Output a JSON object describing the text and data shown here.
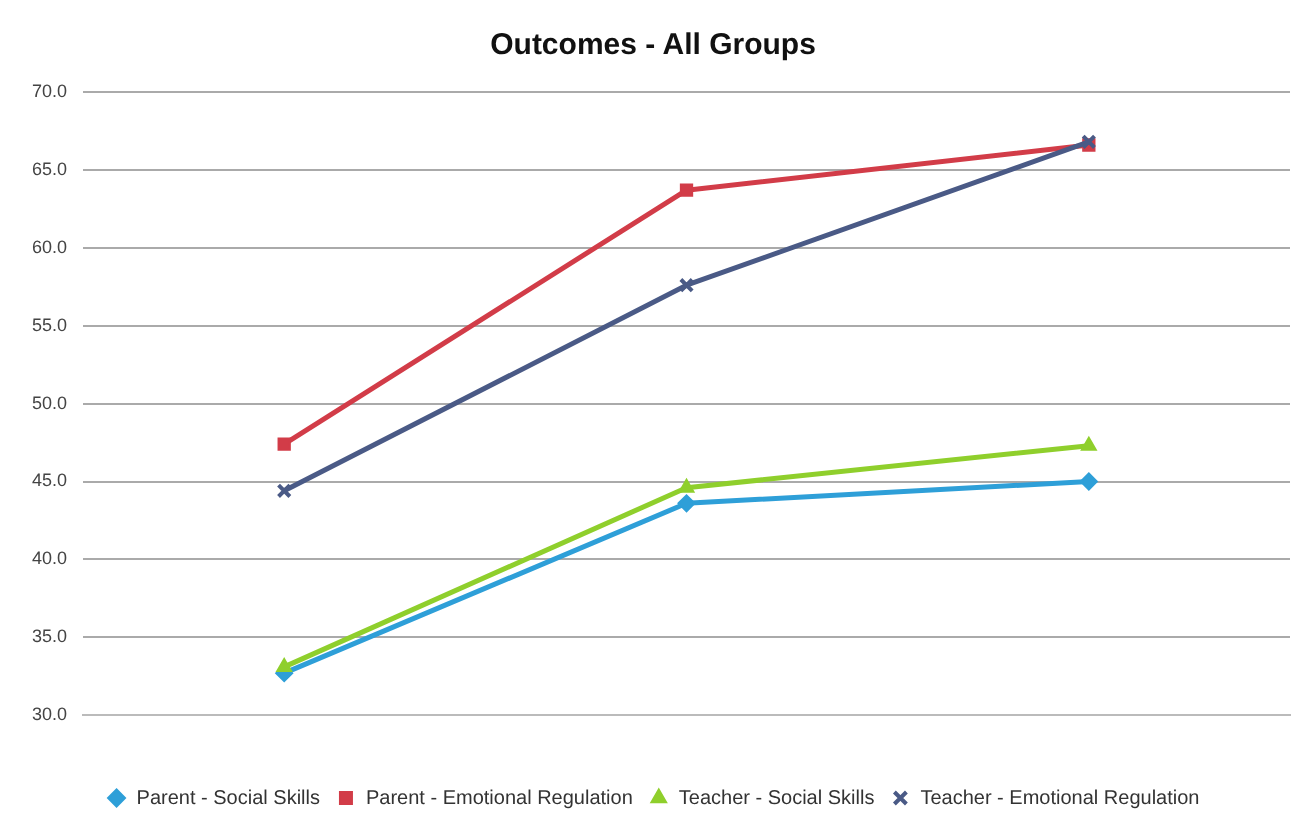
{
  "chart_data": {
    "type": "line",
    "title": "Outcomes - All Groups",
    "categories": [
      null,
      null,
      null
    ],
    "series": [
      {
        "name": "Parent - Social Skills",
        "color": "#2e9fd8",
        "marker": "diamond",
        "values": [
          32.7,
          43.6,
          45.0
        ]
      },
      {
        "name": "Parent - Emotional Regulation",
        "color": "#d23c48",
        "marker": "square",
        "values": [
          47.4,
          63.7,
          66.6
        ]
      },
      {
        "name": "Teacher - Social Skills",
        "color": "#8fcf2c",
        "marker": "triangle",
        "values": [
          33.1,
          44.6,
          47.3
        ]
      },
      {
        "name": "Teacher - Emotional Regulation",
        "color": "#4a5a86",
        "marker": "cross",
        "values": [
          44.4,
          57.6,
          66.8
        ]
      }
    ],
    "ylim": [
      30,
      70
    ],
    "yticks": [
      {
        "value": 30,
        "label": "30.0"
      },
      {
        "value": 35,
        "label": "35.0"
      },
      {
        "value": 40,
        "label": "40.0"
      },
      {
        "value": 45,
        "label": "45.0"
      },
      {
        "value": 50,
        "label": "50.0"
      },
      {
        "value": 55,
        "label": "55.0"
      },
      {
        "value": 60,
        "label": "60.0"
      },
      {
        "value": 65,
        "label": "65.0"
      },
      {
        "value": 70,
        "label": "70.0"
      }
    ],
    "grid": "y",
    "legend": "bottom",
    "line_style": "solid"
  }
}
